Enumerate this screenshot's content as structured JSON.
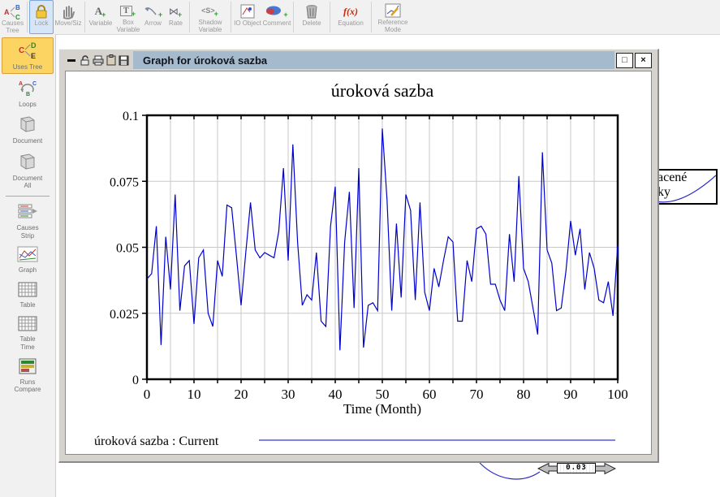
{
  "window": {
    "title": "Graph for úroková sazba",
    "maximize_glyph": "□",
    "close_glyph": "×"
  },
  "toolbar": {
    "items": [
      {
        "id": "causes-tree",
        "label": "Causes Tree"
      },
      {
        "id": "lock",
        "label": "Lock",
        "active": true
      },
      {
        "id": "move-size",
        "label": "Move/Siz"
      },
      {
        "id": "variable",
        "label": "Variable"
      },
      {
        "id": "box-variable",
        "label": "Box Variable"
      },
      {
        "id": "arrow",
        "label": "Arrow"
      },
      {
        "id": "rate",
        "label": "Rate"
      },
      {
        "id": "shadow-variable",
        "label": "Shadow Variable"
      },
      {
        "id": "io-object",
        "label": "IO Object"
      },
      {
        "id": "comment",
        "label": "Comment"
      },
      {
        "id": "delete",
        "label": "Delete"
      },
      {
        "id": "equation",
        "label": "Equation"
      },
      {
        "id": "reference-mode",
        "label": "Reference Mode"
      }
    ]
  },
  "sidebar": {
    "items": [
      {
        "id": "uses-tree",
        "label": "Uses Tree",
        "highlighted": true
      },
      {
        "id": "loops",
        "label": "Loops"
      },
      {
        "id": "document",
        "label": "Document"
      },
      {
        "id": "document-all",
        "label": "Document All"
      },
      {
        "id": "causes-strip",
        "label": "Causes Strip"
      },
      {
        "id": "graph",
        "label": "Graph"
      },
      {
        "id": "table",
        "label": "Table"
      },
      {
        "id": "table-time",
        "label": "Table Time"
      },
      {
        "id": "runs-compare",
        "label": "Runs Compare"
      }
    ]
  },
  "chart_data": {
    "type": "line",
    "title": "úroková sazba",
    "xlabel": "Time (Month)",
    "ylabel": "",
    "xlim": [
      0,
      100
    ],
    "ylim": [
      0,
      0.1
    ],
    "x_grid_step": 5,
    "x_tick_step": 5,
    "grid": true,
    "x_ticks": [
      0,
      10,
      20,
      30,
      40,
      50,
      60,
      70,
      80,
      90,
      100
    ],
    "x_tick_labels": [
      "0",
      "10",
      "20",
      "30",
      "40",
      "50",
      "60",
      "70",
      "80",
      "90",
      "100"
    ],
    "y_ticks": [
      0,
      0.025,
      0.05,
      0.075,
      0.1
    ],
    "y_tick_labels": [
      "0",
      "0.025",
      "0.05",
      "0.075",
      "0.1"
    ],
    "y_grid": [
      0.025,
      0.05,
      0.075
    ],
    "legend_position": "bottom",
    "series": [
      {
        "name": "úroková sazba : Current",
        "color": "#0000cd",
        "x_start": 0,
        "x_step": 1,
        "values": [
          0.038,
          0.04,
          0.058,
          0.013,
          0.054,
          0.034,
          0.07,
          0.026,
          0.043,
          0.045,
          0.021,
          0.046,
          0.049,
          0.025,
          0.02,
          0.045,
          0.039,
          0.066,
          0.065,
          0.047,
          0.028,
          0.048,
          0.067,
          0.049,
          0.046,
          0.048,
          0.047,
          0.046,
          0.056,
          0.08,
          0.045,
          0.089,
          0.052,
          0.028,
          0.032,
          0.03,
          0.048,
          0.022,
          0.02,
          0.058,
          0.073,
          0.011,
          0.052,
          0.071,
          0.027,
          0.08,
          0.012,
          0.028,
          0.029,
          0.026,
          0.095,
          0.068,
          0.026,
          0.059,
          0.031,
          0.07,
          0.064,
          0.03,
          0.067,
          0.033,
          0.026,
          0.042,
          0.035,
          0.045,
          0.054,
          0.052,
          0.022,
          0.022,
          0.045,
          0.037,
          0.057,
          0.058,
          0.055,
          0.036,
          0.036,
          0.03,
          0.026,
          0.055,
          0.037,
          0.077,
          0.042,
          0.037,
          0.027,
          0.017,
          0.086,
          0.049,
          0.044,
          0.026,
          0.027,
          0.041,
          0.06,
          0.047,
          0.057,
          0.034,
          0.048,
          0.042,
          0.03,
          0.029,
          0.037,
          0.024,
          0.051
        ]
      }
    ]
  },
  "flow_box": {
    "line1": "acené",
    "line2": "ky"
  },
  "slider": {
    "value": "0.03"
  },
  "colors": {
    "series_line": "#0000cd",
    "titlebar": "#a6bace",
    "uses_tree_highlight": "#fcd462",
    "lock_highlight": "#d6e6f8",
    "grid": "#c9c9c9"
  }
}
